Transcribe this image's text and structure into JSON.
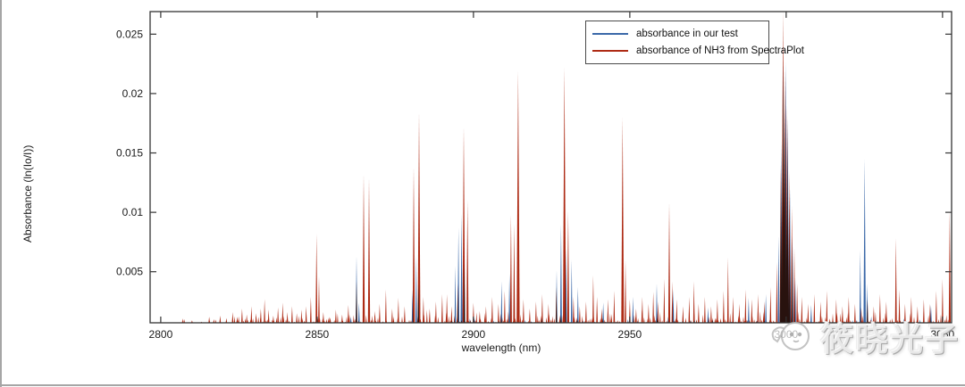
{
  "figure": {
    "background": "#ffffff",
    "axis_color": "#333333"
  },
  "legend": {
    "items": [
      {
        "label": "absorbance in our test",
        "color": "#3a68a8"
      },
      {
        "label": "absorbance of NH3 from SpectraPlot",
        "color": "#ae2b15"
      }
    ]
  },
  "watermark": {
    "text": "筱晓光子",
    "logo": "chick-face-logo"
  },
  "chart_data": {
    "type": "line",
    "subtype": "stick-spectrum",
    "title": "",
    "xlabel": "wavelength (nm)",
    "ylabel": "Absorbance (ln(Io/I))",
    "xlim": [
      2796.6,
      3052.9
    ],
    "ylim": [
      0.0007,
      0.0269
    ],
    "xticks": [
      2800,
      2850,
      2900,
      2950,
      3000,
      3050
    ],
    "yticks": [
      0.005,
      0.01,
      0.015,
      0.02,
      0.025
    ],
    "grid": false,
    "legend_position": "upper center-right",
    "series": [
      {
        "name": "absorbance in our test",
        "color": "#3a68a8",
        "peaks": [
          [
            2860.8,
            0.0012
          ],
          [
            2862.6,
            0.0063
          ],
          [
            2863.4,
            0.0024
          ],
          [
            2880.5,
            0.0035
          ],
          [
            2881.7,
            0.0063
          ],
          [
            2882.4,
            0.004
          ],
          [
            2894.2,
            0.0055
          ],
          [
            2895.2,
            0.0087
          ],
          [
            2896.2,
            0.0099
          ],
          [
            2897.1,
            0.0058
          ],
          [
            2909.0,
            0.0042
          ],
          [
            2911.5,
            0.0048
          ],
          [
            2926.6,
            0.0051
          ],
          [
            2928.0,
            0.009
          ],
          [
            2929.6,
            0.007
          ],
          [
            2931.4,
            0.006
          ],
          [
            2933.4,
            0.0037
          ],
          [
            2941.5,
            0.0024
          ],
          [
            2951.0,
            0.0029
          ],
          [
            2958.6,
            0.004
          ],
          [
            2963.9,
            0.0035
          ],
          [
            2975.0,
            0.002
          ],
          [
            2988.0,
            0.0028
          ],
          [
            2993.5,
            0.0031
          ],
          [
            2997.6,
            0.008
          ],
          [
            2998.4,
            0.016
          ],
          [
            2999.1,
            0.0226
          ],
          [
            2999.8,
            0.0227
          ],
          [
            3000.5,
            0.018
          ],
          [
            3001.2,
            0.012
          ],
          [
            3002.0,
            0.008
          ],
          [
            3002.9,
            0.0045
          ],
          [
            3008.0,
            0.0022
          ],
          [
            3023.7,
            0.0068
          ],
          [
            3025.1,
            0.0145
          ],
          [
            3025.9,
            0.004
          ],
          [
            3046.3,
            0.0022
          ]
        ]
      },
      {
        "name": "absorbance of NH3 from SpectraPlot",
        "color": "#ae2b15",
        "peaks": [
          [
            2807.5,
            0.001
          ],
          [
            2810.0,
            0.0009
          ],
          [
            2813.0,
            0.0008
          ],
          [
            2815.5,
            0.0012
          ],
          [
            2817.0,
            0.001
          ],
          [
            2819.0,
            0.0013
          ],
          [
            2821.0,
            0.0011
          ],
          [
            2823.0,
            0.0016
          ],
          [
            2824.5,
            0.0012
          ],
          [
            2826.0,
            0.0019
          ],
          [
            2827.5,
            0.0014
          ],
          [
            2829.0,
            0.0021
          ],
          [
            2830.5,
            0.0015
          ],
          [
            2832.0,
            0.0019
          ],
          [
            2833.2,
            0.0027
          ],
          [
            2834.5,
            0.0018
          ],
          [
            2836.0,
            0.0013
          ],
          [
            2837.5,
            0.002
          ],
          [
            2839.0,
            0.0024
          ],
          [
            2840.5,
            0.0016
          ],
          [
            2842.0,
            0.0021
          ],
          [
            2843.5,
            0.0015
          ],
          [
            2845.0,
            0.0018
          ],
          [
            2846.5,
            0.0021
          ],
          [
            2848.0,
            0.0029
          ],
          [
            2849.8,
            0.0082
          ],
          [
            2850.6,
            0.0046
          ],
          [
            2852.0,
            0.0016
          ],
          [
            2854.0,
            0.0012
          ],
          [
            2856.0,
            0.0018
          ],
          [
            2858.0,
            0.0014
          ],
          [
            2860.0,
            0.0022
          ],
          [
            2862.6,
            0.0042
          ],
          [
            2864.9,
            0.0132
          ],
          [
            2866.6,
            0.0129
          ],
          [
            2868.5,
            0.0017
          ],
          [
            2870.0,
            0.0023
          ],
          [
            2872.0,
            0.0035
          ],
          [
            2874.0,
            0.0019
          ],
          [
            2876.0,
            0.0028
          ],
          [
            2878.0,
            0.0021
          ],
          [
            2880.9,
            0.0138
          ],
          [
            2882.6,
            0.0184
          ],
          [
            2884.0,
            0.0029
          ],
          [
            2886.0,
            0.0019
          ],
          [
            2888.0,
            0.0025
          ],
          [
            2890.0,
            0.0031
          ],
          [
            2891.5,
            0.0031
          ],
          [
            2893.0,
            0.0021
          ],
          [
            2895.0,
            0.004
          ],
          [
            2896.9,
            0.0172
          ],
          [
            2898.1,
            0.011
          ],
          [
            2900.0,
            0.0024
          ],
          [
            2902.0,
            0.0017
          ],
          [
            2904.0,
            0.0021
          ],
          [
            2906.0,
            0.0029
          ],
          [
            2908.0,
            0.0023
          ],
          [
            2910.0,
            0.0034
          ],
          [
            2912.0,
            0.0098
          ],
          [
            2913.0,
            0.009
          ],
          [
            2914.3,
            0.0219
          ],
          [
            2916.0,
            0.0027
          ],
          [
            2918.0,
            0.0019
          ],
          [
            2920.0,
            0.0025
          ],
          [
            2922.0,
            0.0031
          ],
          [
            2924.0,
            0.0023
          ],
          [
            2926.5,
            0.0037
          ],
          [
            2929.1,
            0.0222
          ],
          [
            2930.3,
            0.0101
          ],
          [
            2932.0,
            0.0029
          ],
          [
            2934.0,
            0.0021
          ],
          [
            2936.0,
            0.0025
          ],
          [
            2938.3,
            0.0047
          ],
          [
            2939.5,
            0.0029
          ],
          [
            2941.0,
            0.0019
          ],
          [
            2943.0,
            0.0027
          ],
          [
            2945.0,
            0.0034
          ],
          [
            2947.7,
            0.018
          ],
          [
            2948.6,
            0.006
          ],
          [
            2950.0,
            0.0027
          ],
          [
            2952.0,
            0.0019
          ],
          [
            2954.0,
            0.0029
          ],
          [
            2956.0,
            0.0023
          ],
          [
            2957.5,
            0.0033
          ],
          [
            2959.0,
            0.0025
          ],
          [
            2961.0,
            0.0044
          ],
          [
            2962.6,
            0.0108
          ],
          [
            2963.6,
            0.0042
          ],
          [
            2965.0,
            0.0027
          ],
          [
            2967.0,
            0.0021
          ],
          [
            2969.0,
            0.0029
          ],
          [
            2970.5,
            0.0042
          ],
          [
            2972.0,
            0.0023
          ],
          [
            2974.0,
            0.0029
          ],
          [
            2976.0,
            0.0021
          ],
          [
            2978.0,
            0.0027
          ],
          [
            2980.0,
            0.0034
          ],
          [
            2981.4,
            0.0062
          ],
          [
            2983.0,
            0.0029
          ],
          [
            2985.0,
            0.0023
          ],
          [
            2987.0,
            0.0035
          ],
          [
            2989.0,
            0.0027
          ],
          [
            2991.0,
            0.0031
          ],
          [
            2993.0,
            0.0025
          ],
          [
            2995.0,
            0.0037
          ],
          [
            2997.0,
            0.0058
          ],
          [
            2998.3,
            0.014
          ],
          [
            2999.0,
            0.0272
          ],
          [
            2999.6,
            0.022
          ],
          [
            3000.3,
            0.019
          ],
          [
            3001.0,
            0.0135
          ],
          [
            3001.8,
            0.0105
          ],
          [
            3002.6,
            0.007
          ],
          [
            3003.5,
            0.004
          ],
          [
            3005.0,
            0.0029
          ],
          [
            3007.0,
            0.0023
          ],
          [
            3009.0,
            0.0031
          ],
          [
            3011.0,
            0.0025
          ],
          [
            3013.0,
            0.0034
          ],
          [
            3016.0,
            0.0027
          ],
          [
            3018.0,
            0.0021
          ],
          [
            3020.0,
            0.0029
          ],
          [
            3022.0,
            0.0023
          ],
          [
            3024.0,
            0.002
          ],
          [
            3026.0,
            0.0027
          ],
          [
            3028.0,
            0.0021
          ],
          [
            3030.0,
            0.0031
          ],
          [
            3032.0,
            0.0025
          ],
          [
            3035.1,
            0.0078
          ],
          [
            3036.2,
            0.0035
          ],
          [
            3038.0,
            0.0023
          ],
          [
            3040.0,
            0.0029
          ],
          [
            3042.0,
            0.0021
          ],
          [
            3044.0,
            0.0027
          ],
          [
            3046.0,
            0.0023
          ],
          [
            3048.0,
            0.0034
          ],
          [
            3050.0,
            0.0044
          ],
          [
            3052.3,
            0.0101
          ]
        ]
      }
    ],
    "baseline_noise": {
      "seed": 20240501,
      "red": {
        "range": [
          2807,
          3052
        ],
        "sparse_until": 2822,
        "amp": 0.0012
      },
      "blue": {
        "range": [
          2890,
          3050
        ],
        "amp": 0.0006
      }
    }
  }
}
